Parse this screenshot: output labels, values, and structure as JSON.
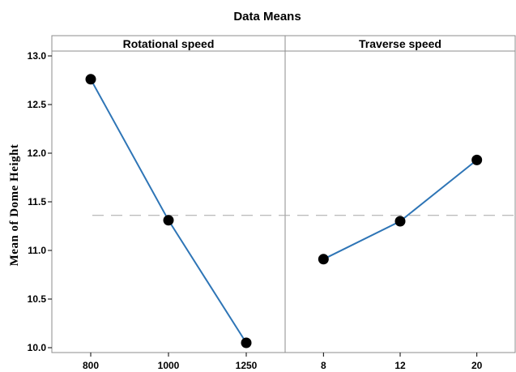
{
  "chart_data": {
    "type": "line",
    "title": "Data Means",
    "ylabel": "Mean of Dome Height",
    "ylim": [
      9.95,
      13.05
    ],
    "yticks": [
      "10.0",
      "10.5",
      "11.0",
      "11.5",
      "12.0",
      "12.5",
      "13.0"
    ],
    "reference_line": {
      "value": 11.36,
      "style": "dashed"
    },
    "line_color": "#2e75b6",
    "marker_color": "#000000",
    "panels": [
      {
        "title": "Rotational speed",
        "categories": [
          "800",
          "1000",
          "1250"
        ],
        "values": [
          12.76,
          11.31,
          10.05
        ]
      },
      {
        "title": "Traverse speed",
        "categories": [
          "8",
          "12",
          "20"
        ],
        "values": [
          10.91,
          11.3,
          11.93
        ]
      }
    ]
  }
}
